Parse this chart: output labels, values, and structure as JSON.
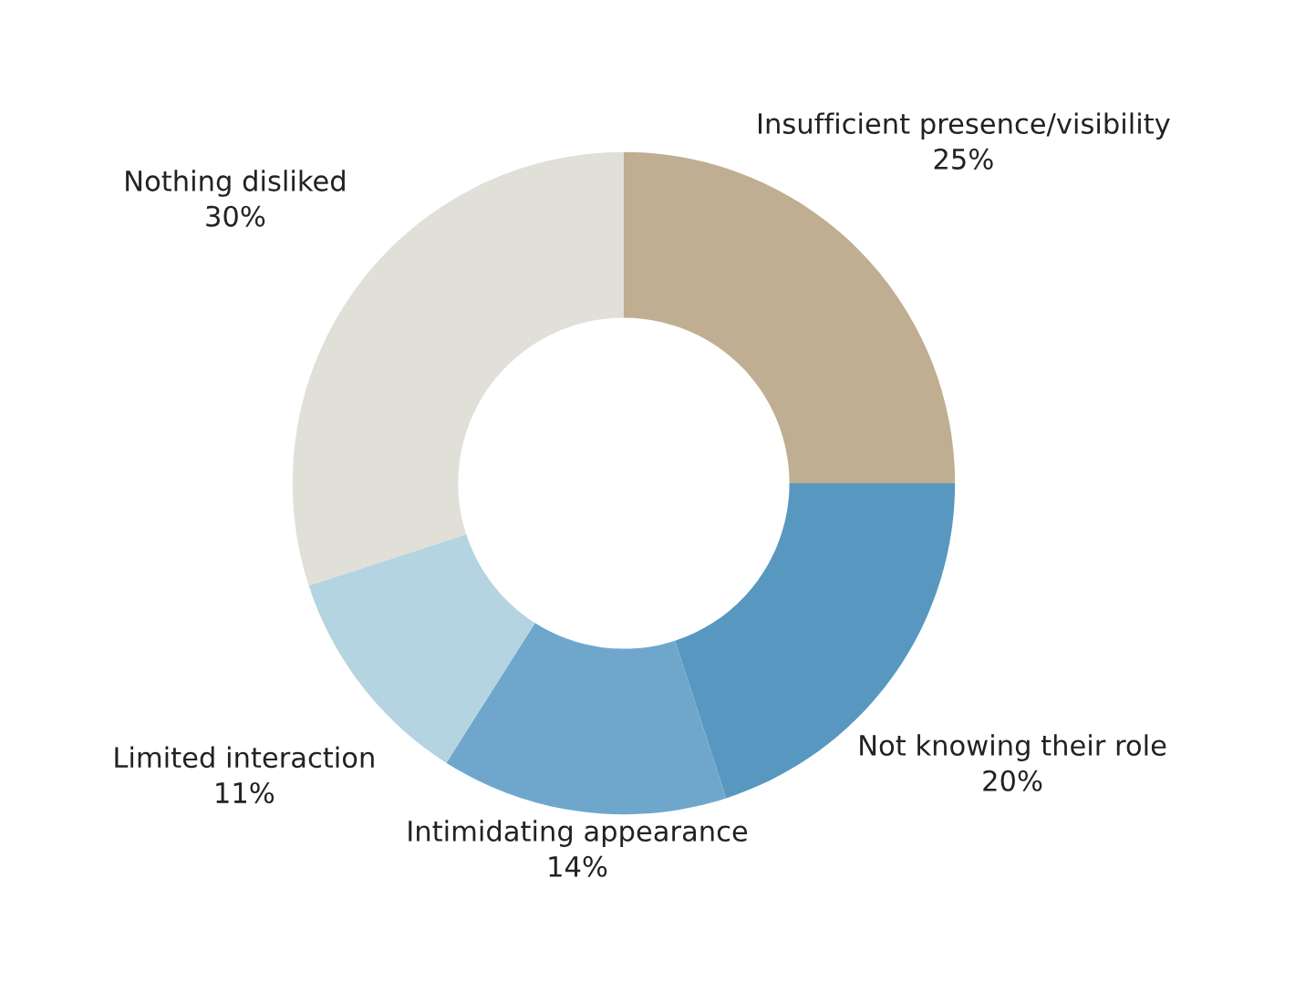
{
  "chart_data": {
    "type": "donut",
    "categories": [
      "Insufficient presence/visibility",
      "Not knowing their role",
      "Intimidating appearance",
      "Limited interaction",
      "Nothing disliked"
    ],
    "values": [
      25,
      20,
      14,
      11,
      30
    ],
    "value_labels": [
      "25%",
      "20%",
      "14%",
      "11%",
      "30%"
    ],
    "colors": [
      "#bfae92",
      "#5898c0",
      "#6fa7cc",
      "#b3d4e0",
      "#e0dfd8"
    ],
    "legend": false
  }
}
